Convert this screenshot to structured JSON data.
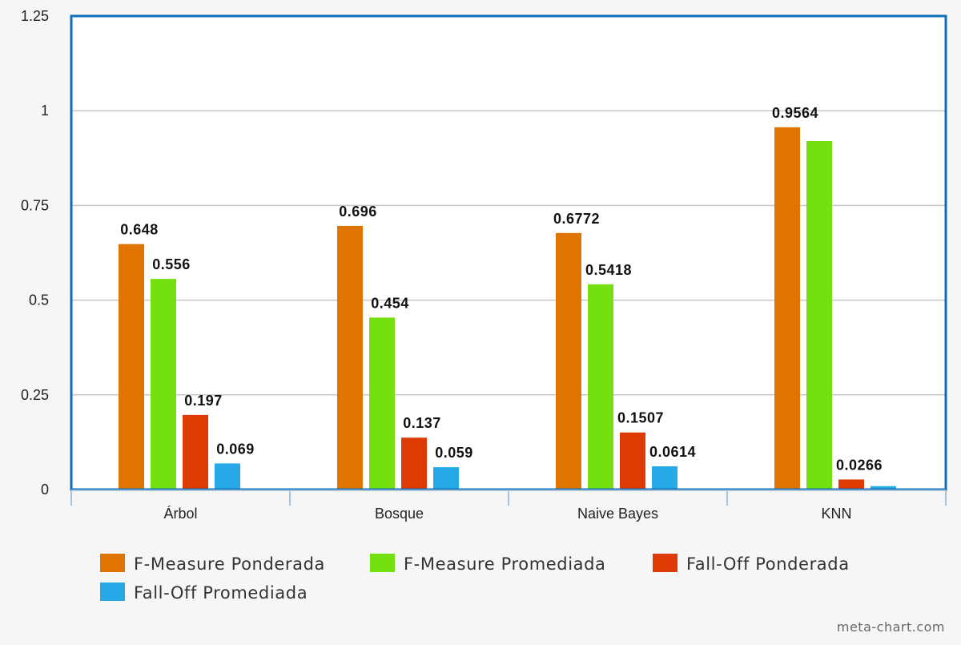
{
  "chart_data": {
    "type": "bar",
    "title": "",
    "xlabel": "",
    "ylabel": "",
    "ylim": [
      0,
      1.25
    ],
    "yticks": [
      "0",
      "0.25",
      "0.5",
      "0.75",
      "1",
      "1.25"
    ],
    "grid": true,
    "legend_position": "bottom",
    "categories": [
      "Árbol",
      "Bosque",
      "Naive Bayes",
      "KNN"
    ],
    "series": [
      {
        "name": "F-Measure Ponderada",
        "color": "#e07400",
        "values": [
          0.648,
          0.696,
          0.6772,
          0.9564
        ],
        "labels": [
          "0.648",
          "0.696",
          "0.6772",
          "0.9564"
        ]
      },
      {
        "name": "F-Measure Promediada",
        "color": "#74e010",
        "values": [
          0.556,
          0.454,
          0.5418,
          0.92
        ],
        "labels": [
          "0.556",
          "0.454",
          "0.5418",
          ""
        ]
      },
      {
        "name": "Fall-Off Ponderada",
        "color": "#dd3a04",
        "values": [
          0.197,
          0.137,
          0.1507,
          0.0266
        ],
        "labels": [
          "0.197",
          "0.137",
          "0.1507",
          "0.0266"
        ]
      },
      {
        "name": "Fall-Off Promediada",
        "color": "#26a9e6",
        "values": [
          0.069,
          0.059,
          0.0614,
          0.009
        ],
        "labels": [
          "0.069",
          "0.059",
          "0.0614",
          ""
        ]
      }
    ],
    "colors": {
      "frame": "#0d6fb8",
      "grid": "#c8c8c8",
      "background": "#ffffff"
    }
  },
  "watermark": "meta-chart.com"
}
